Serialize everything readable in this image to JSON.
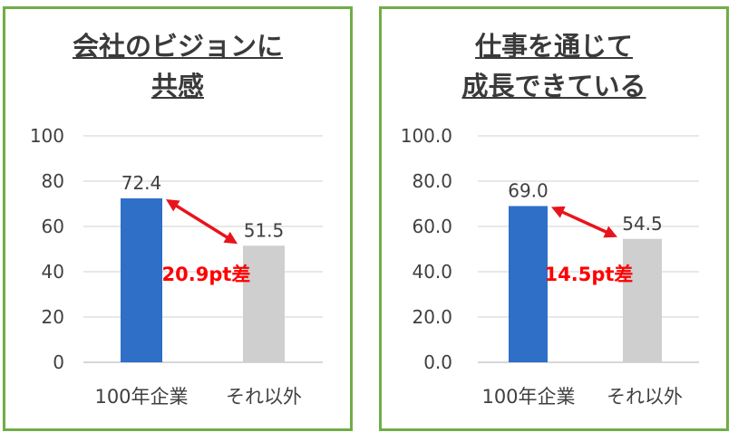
{
  "colors": {
    "border": "#70ad47",
    "bar_100nen": "#2f6fc8",
    "bar_other": "#cfcfcf",
    "arrow": "#e8141b",
    "grid": "#d9d9d9"
  },
  "chart_data": [
    {
      "type": "bar",
      "title_lines": [
        "会社のビジョンに",
        "共感"
      ],
      "categories": [
        "100年企業",
        "それ以外"
      ],
      "values": [
        72.4,
        51.5
      ],
      "value_labels": [
        "72.4",
        "51.5"
      ],
      "yticks": [
        "0",
        "20",
        "40",
        "60",
        "80",
        "100"
      ],
      "ylim": [
        0,
        100
      ],
      "grid": true,
      "annotation": "20.9pt差"
    },
    {
      "type": "bar",
      "title_lines": [
        "仕事を通じて",
        "成長できている"
      ],
      "categories": [
        "100年企業",
        "それ以外"
      ],
      "values": [
        69.0,
        54.5
      ],
      "value_labels": [
        "69.0",
        "54.5"
      ],
      "yticks": [
        "0.0",
        "20.0",
        "40.0",
        "60.0",
        "80.0",
        "100.0"
      ],
      "ylim": [
        0,
        100
      ],
      "grid": true,
      "annotation": "14.5pt差"
    }
  ]
}
